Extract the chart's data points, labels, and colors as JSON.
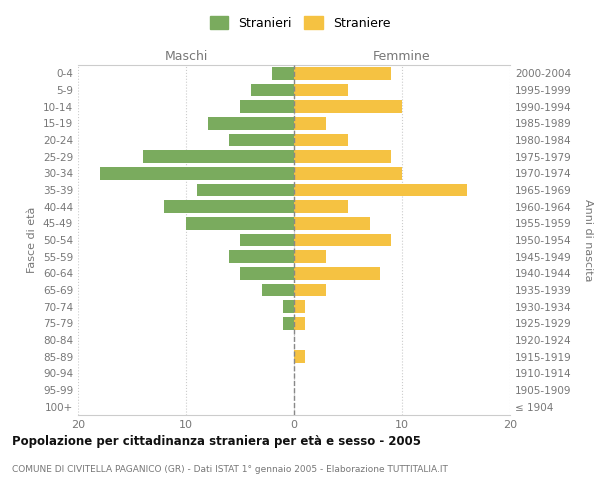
{
  "age_groups": [
    "100+",
    "95-99",
    "90-94",
    "85-89",
    "80-84",
    "75-79",
    "70-74",
    "65-69",
    "60-64",
    "55-59",
    "50-54",
    "45-49",
    "40-44",
    "35-39",
    "30-34",
    "25-29",
    "20-24",
    "15-19",
    "10-14",
    "5-9",
    "0-4"
  ],
  "birth_years": [
    "≤ 1904",
    "1905-1909",
    "1910-1914",
    "1915-1919",
    "1920-1924",
    "1925-1929",
    "1930-1934",
    "1935-1939",
    "1940-1944",
    "1945-1949",
    "1950-1954",
    "1955-1959",
    "1960-1964",
    "1965-1969",
    "1970-1974",
    "1975-1979",
    "1980-1984",
    "1985-1989",
    "1990-1994",
    "1995-1999",
    "2000-2004"
  ],
  "maschi": [
    0,
    0,
    0,
    0,
    0,
    1,
    1,
    3,
    5,
    6,
    5,
    10,
    12,
    9,
    18,
    14,
    6,
    8,
    5,
    4,
    2
  ],
  "straniere": [
    0,
    0,
    0,
    1,
    0,
    1,
    1,
    3,
    8,
    3,
    9,
    7,
    5,
    16,
    10,
    9,
    5,
    3,
    10,
    5,
    9
  ],
  "maschi_color": "#7aab5e",
  "straniere_color": "#f5c242",
  "title": "Popolazione per cittadinanza straniera per età e sesso - 2005",
  "subtitle": "COMUNE DI CIVITELLA PAGANICO (GR) - Dati ISTAT 1° gennaio 2005 - Elaborazione TUTTITALIA.IT",
  "xlabel_left": "Maschi",
  "xlabel_right": "Femmine",
  "ylabel_left": "Fasce di età",
  "ylabel_right": "Anni di nascita",
  "legend_stranieri": "Stranieri",
  "legend_straniere": "Straniere",
  "xlim": 20,
  "background_color": "#ffffff",
  "grid_color": "#cccccc"
}
